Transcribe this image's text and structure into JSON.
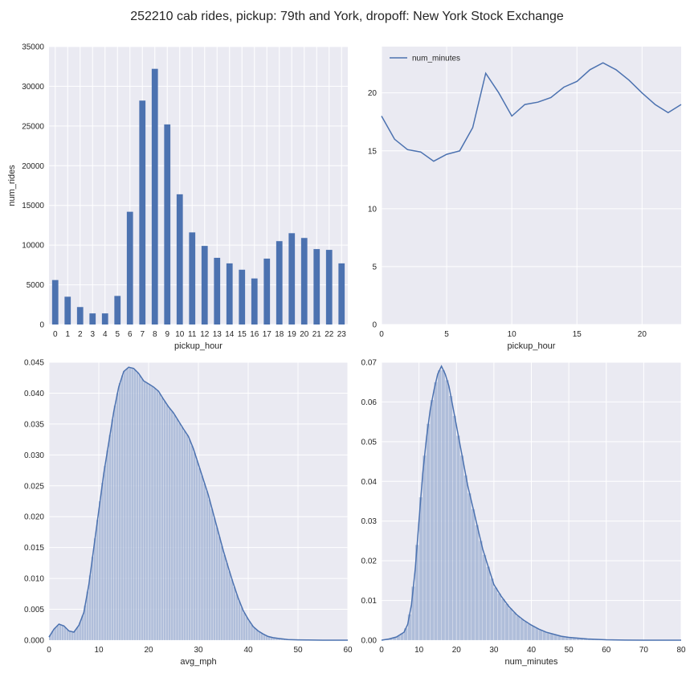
{
  "title": "252210 cab rides, pickup: 79th and York, dropoff: New York Stock Exchange",
  "colors": {
    "axes_bg": "#EAEAF2",
    "grid": "#FFFFFF",
    "bar": "#4C72B0",
    "line": "#4C72B0",
    "hist": "#A6B6D6",
    "text": "#262626"
  },
  "chart_data": [
    {
      "type": "bar",
      "title": "",
      "xlabel": "pickup_hour",
      "ylabel": "num_rides",
      "categories": [
        "0",
        "1",
        "2",
        "3",
        "4",
        "5",
        "6",
        "7",
        "8",
        "9",
        "10",
        "11",
        "12",
        "13",
        "14",
        "15",
        "16",
        "17",
        "18",
        "19",
        "20",
        "21",
        "22",
        "23"
      ],
      "values": [
        5600,
        3500,
        2200,
        1400,
        1400,
        3600,
        14200,
        28200,
        32200,
        25200,
        16400,
        11600,
        9900,
        8400,
        7700,
        6900,
        5800,
        8300,
        10500,
        11500,
        10900,
        9500,
        9400,
        7700
      ],
      "ylim": [
        0,
        35000
      ],
      "yticks": [
        0,
        5000,
        10000,
        15000,
        20000,
        25000,
        30000,
        35000
      ],
      "grid": true
    },
    {
      "type": "line",
      "title": "",
      "xlabel": "pickup_hour",
      "ylabel": "",
      "legend": "top-left",
      "series": [
        {
          "name": "num_minutes",
          "x": [
            0,
            1,
            2,
            3,
            4,
            5,
            6,
            7,
            8,
            9,
            10,
            11,
            12,
            13,
            14,
            15,
            16,
            17,
            18,
            19,
            20,
            21,
            22,
            23
          ],
          "y": [
            18.0,
            16.0,
            15.1,
            14.9,
            14.1,
            14.7,
            15.0,
            17.0,
            21.7,
            20.0,
            18.0,
            19.0,
            19.2,
            19.6,
            20.5,
            21.0,
            22.0,
            22.6,
            22.0,
            21.1,
            20.0,
            19.0,
            18.3,
            19.0
          ]
        }
      ],
      "xlim": [
        0,
        23
      ],
      "xticks": [
        0,
        5,
        10,
        15,
        20
      ],
      "ylim": [
        0,
        24
      ],
      "yticks": [
        0,
        5,
        10,
        15,
        20
      ],
      "grid": true
    },
    {
      "type": "area",
      "title": "",
      "xlabel": "avg_mph",
      "ylabel": "",
      "description_kind": "histogram with density curve",
      "x": [
        0,
        1,
        2,
        3,
        4,
        5,
        6,
        7,
        8,
        9,
        10,
        11,
        12,
        13,
        14,
        15,
        16,
        17,
        18,
        19,
        20,
        21,
        22,
        23,
        24,
        25,
        26,
        27,
        28,
        29,
        30,
        31,
        32,
        33,
        34,
        35,
        36,
        37,
        38,
        39,
        40,
        41,
        42,
        43,
        44,
        45,
        46,
        47,
        48,
        50,
        52,
        55,
        60
      ],
      "y": [
        0.0005,
        0.0018,
        0.0026,
        0.0023,
        0.0015,
        0.0013,
        0.0024,
        0.0045,
        0.009,
        0.015,
        0.021,
        0.027,
        0.032,
        0.037,
        0.041,
        0.0435,
        0.0442,
        0.044,
        0.0432,
        0.042,
        0.0415,
        0.041,
        0.0403,
        0.039,
        0.0378,
        0.0368,
        0.0355,
        0.0342,
        0.033,
        0.031,
        0.0285,
        0.026,
        0.0235,
        0.0205,
        0.0175,
        0.0145,
        0.0118,
        0.0092,
        0.0068,
        0.0048,
        0.0034,
        0.0022,
        0.0015,
        0.001,
        0.0006,
        0.0004,
        0.0003,
        0.0002,
        0.0001,
        5e-05,
        2e-05,
        0.0,
        0.0
      ],
      "xlim": [
        0,
        60
      ],
      "xticks": [
        0,
        10,
        20,
        30,
        40,
        50,
        60
      ],
      "ylim": [
        0,
        0.045
      ],
      "yticks": [
        "0.000",
        "0.005",
        "0.010",
        "0.015",
        "0.020",
        "0.025",
        "0.030",
        "0.035",
        "0.040",
        "0.045"
      ],
      "grid": true
    },
    {
      "type": "area",
      "title": "",
      "xlabel": "num_minutes",
      "ylabel": "",
      "description_kind": "histogram with density curve",
      "x": [
        0,
        2,
        4,
        6,
        7,
        8,
        9,
        10,
        11,
        12,
        13,
        14,
        15,
        16,
        17,
        18,
        19,
        20,
        21,
        22,
        23,
        24,
        25,
        26,
        27,
        28,
        29,
        30,
        32,
        34,
        36,
        38,
        40,
        42,
        44,
        46,
        48,
        50,
        55,
        60,
        65,
        70,
        80
      ],
      "y": [
        0.0,
        0.0003,
        0.0008,
        0.002,
        0.004,
        0.009,
        0.018,
        0.03,
        0.042,
        0.051,
        0.058,
        0.063,
        0.067,
        0.069,
        0.067,
        0.064,
        0.059,
        0.054,
        0.049,
        0.044,
        0.039,
        0.035,
        0.031,
        0.027,
        0.023,
        0.02,
        0.017,
        0.014,
        0.011,
        0.0085,
        0.0065,
        0.005,
        0.0038,
        0.0028,
        0.002,
        0.0015,
        0.001,
        0.0007,
        0.0003,
        0.0001,
        2e-05,
        0.0,
        0.0
      ],
      "xlim": [
        0,
        80
      ],
      "xticks": [
        0,
        10,
        20,
        30,
        40,
        50,
        60,
        70,
        80
      ],
      "ylim": [
        0,
        0.07
      ],
      "yticks": [
        "0.00",
        "0.01",
        "0.02",
        "0.03",
        "0.04",
        "0.05",
        "0.06",
        "0.07"
      ],
      "grid": true
    }
  ]
}
